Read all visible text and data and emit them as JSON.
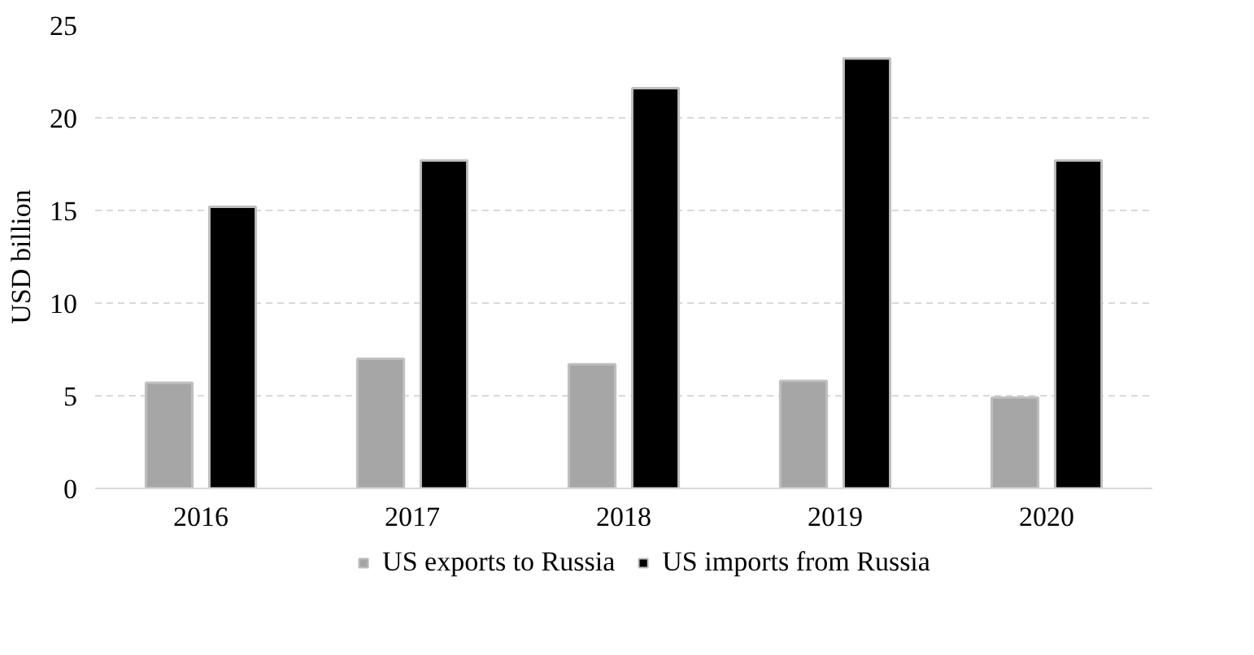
{
  "chart_data": {
    "type": "bar",
    "ylabel": "USD billion",
    "categories": [
      "2016",
      "2017",
      "2018",
      "2019",
      "2020"
    ],
    "series": [
      {
        "name": "US exports to Russia",
        "color": "#a6a6a6",
        "values": [
          5.7,
          7.0,
          6.7,
          5.8,
          4.9
        ]
      },
      {
        "name": "US imports from Russia",
        "color": "#000000",
        "values": [
          15.2,
          17.7,
          21.6,
          23.2,
          17.7
        ]
      }
    ],
    "ylim": [
      0,
      25
    ],
    "yticks": [
      0,
      5,
      10,
      15,
      20,
      25
    ],
    "grid": "y",
    "legend": "bottom"
  }
}
